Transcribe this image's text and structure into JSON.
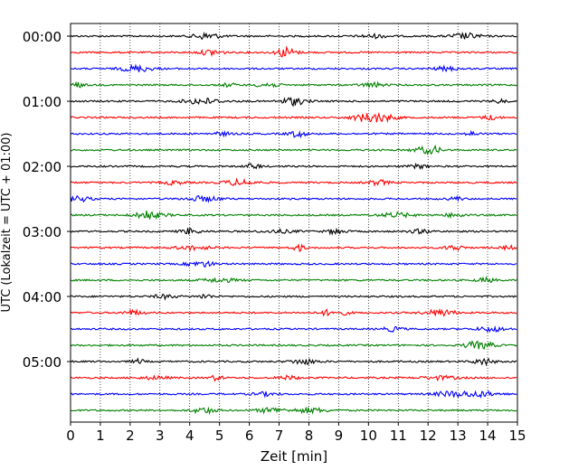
{
  "chart_data": {
    "type": "line",
    "title": "",
    "xlabel": "Zeit  [min]",
    "ylabel": "UTC (Lokalzeit = UTC + 01:00)",
    "xlim": [
      0,
      15
    ],
    "x_ticks": [
      "0",
      "1",
      "2",
      "3",
      "4",
      "5",
      "6",
      "7",
      "8",
      "9",
      "10",
      "11",
      "12",
      "13",
      "14",
      "15"
    ],
    "y_tick_labels": [
      "00:00",
      "01:00",
      "02:00",
      "03:00",
      "04:00",
      "05:00"
    ],
    "grid": "vertical dotted at each minute",
    "trace_interval_min": 15,
    "trace_count": 24,
    "trace_colors": [
      "#000000",
      "#ff0000",
      "#0000ff",
      "#008000"
    ],
    "trace_start_times": [
      "00:00",
      "00:15",
      "00:30",
      "00:45",
      "01:00",
      "01:15",
      "01:30",
      "01:45",
      "02:00",
      "02:15",
      "02:30",
      "02:45",
      "03:00",
      "03:15",
      "03:30",
      "03:45",
      "04:00",
      "04:15",
      "04:30",
      "04:45",
      "05:00",
      "05:15",
      "05:30",
      "05:45"
    ]
  }
}
